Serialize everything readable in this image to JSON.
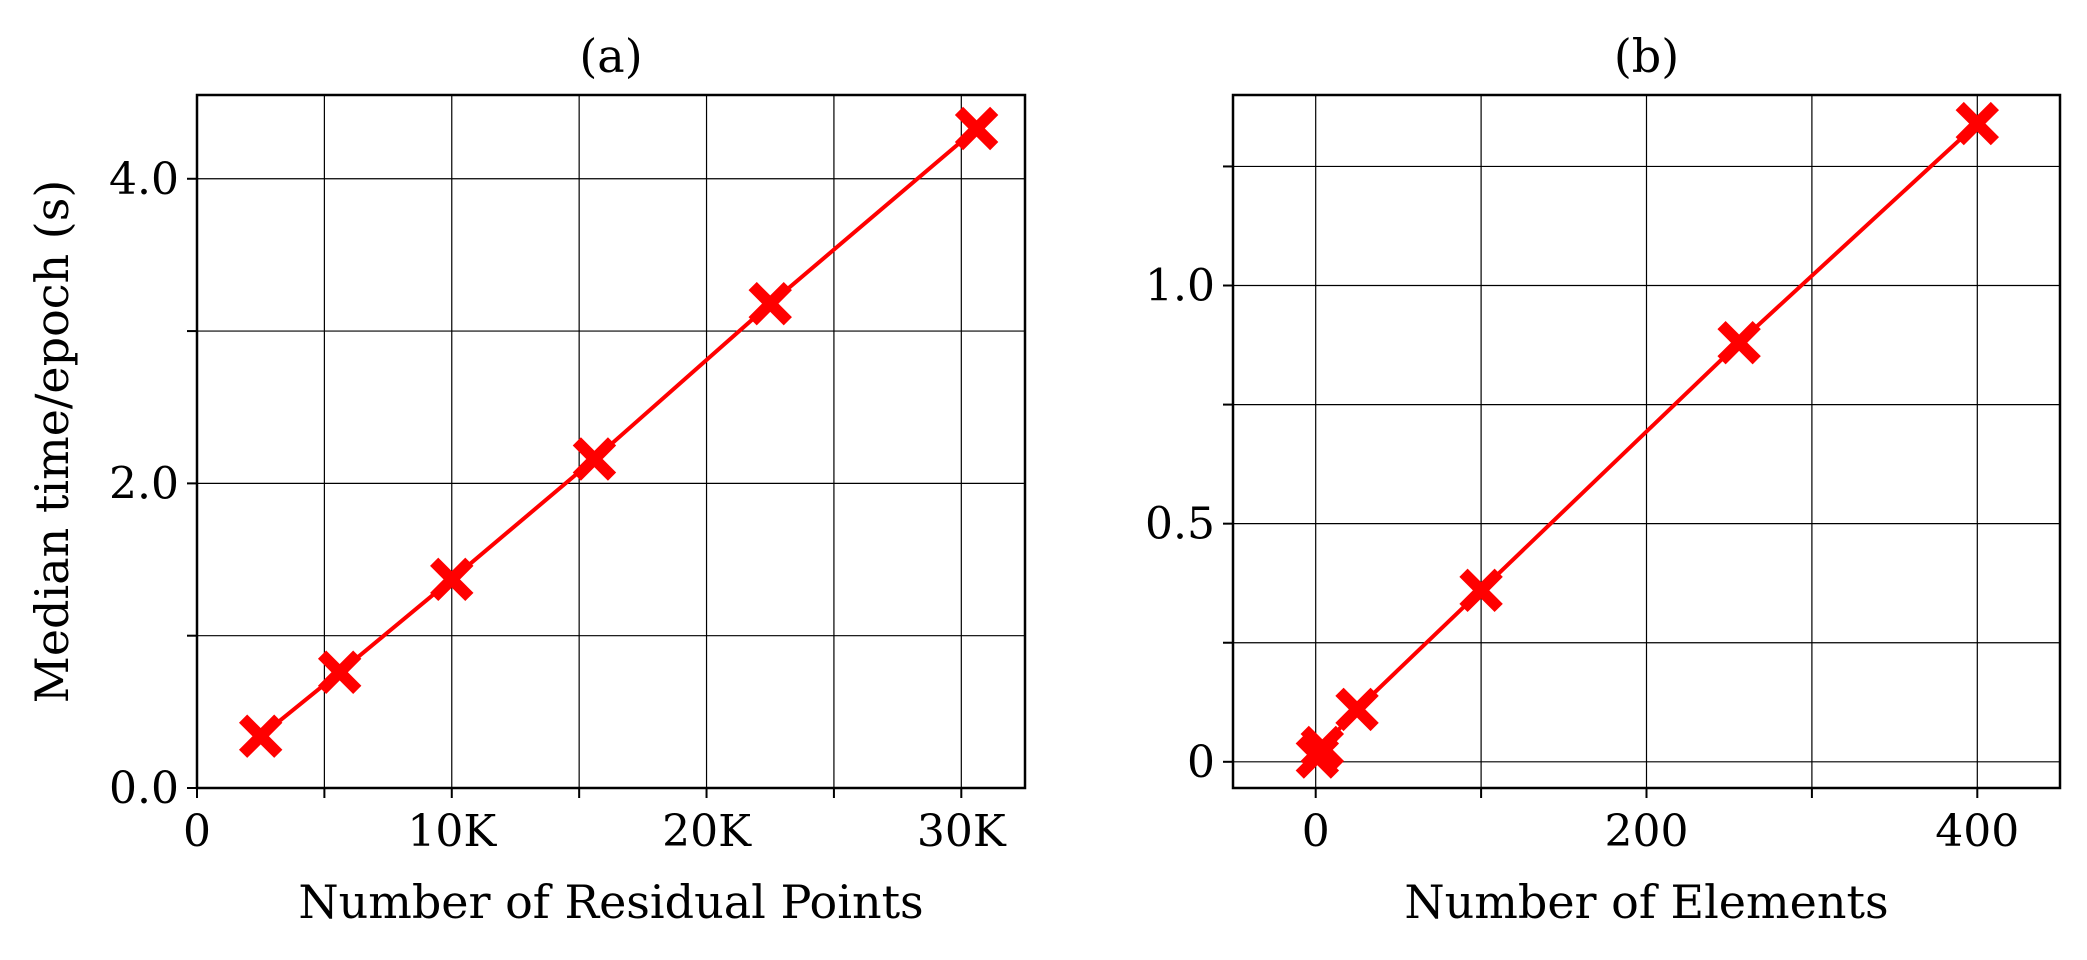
{
  "figure": {
    "panels": [
      "a",
      "b"
    ]
  },
  "chart_data": [
    {
      "type": "line",
      "title": "(a)",
      "xlabel": "Number of Residual Points",
      "ylabel": "Median time/epoch (s)",
      "xlim": [
        0,
        32500
      ],
      "ylim": [
        0,
        4.55
      ],
      "x_ticks": [
        0,
        5000,
        10000,
        15000,
        20000,
        25000,
        30000
      ],
      "x_tick_labels": [
        "0",
        "",
        "10K",
        "",
        "20K",
        "",
        "30K"
      ],
      "y_ticks": [
        0,
        1,
        2,
        3,
        4
      ],
      "y_tick_labels": [
        "0.0",
        "",
        "2.0",
        "",
        "4.0"
      ],
      "grid": true,
      "marker": "X",
      "color": "#ff0000",
      "series": [
        {
          "x": [
            2500,
            5600,
            10000,
            15600,
            22500,
            30600
          ],
          "y": [
            0.34,
            0.76,
            1.37,
            2.16,
            3.18,
            4.33
          ]
        }
      ]
    },
    {
      "type": "line",
      "title": "(b)",
      "xlabel": "Number of Elements",
      "ylabel": "",
      "xlim": [
        -50,
        450
      ],
      "ylim": [
        -0.055,
        1.4
      ],
      "x_ticks": [
        0,
        100,
        200,
        300,
        400
      ],
      "x_tick_labels": [
        "0",
        "",
        "200",
        "",
        "400"
      ],
      "y_ticks": [
        0,
        0.25,
        0.5,
        0.75,
        1.0,
        1.25
      ],
      "y_tick_labels": [
        "0",
        "",
        "0.5",
        "",
        "1.0",
        ""
      ],
      "grid": true,
      "marker": "X",
      "color": "#ff0000",
      "series": [
        {
          "x": [
            1,
            4,
            25,
            100,
            256,
            400
          ],
          "y": [
            0.01,
            0.03,
            0.11,
            0.36,
            0.88,
            1.34
          ]
        }
      ]
    }
  ]
}
